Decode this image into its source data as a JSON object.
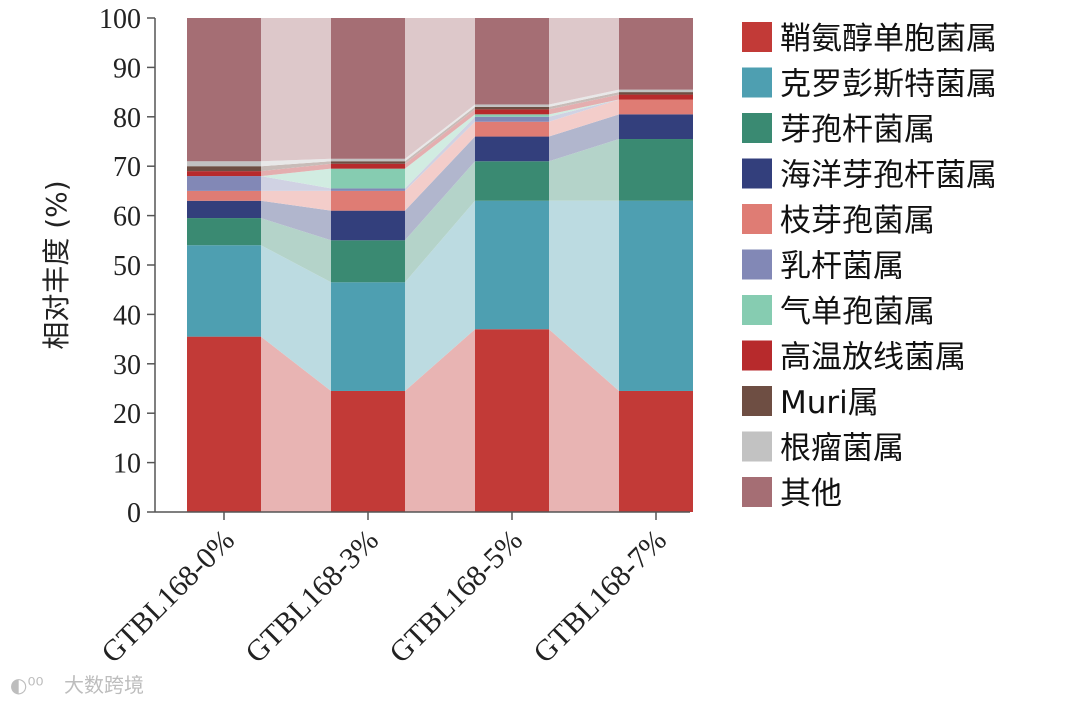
{
  "chart_data": {
    "type": "bar",
    "stacked": true,
    "title": "",
    "xlabel": "",
    "ylabel": "相对丰度 (%)",
    "ylim": [
      0,
      100
    ],
    "yticks": [
      0,
      10,
      20,
      30,
      40,
      50,
      60,
      70,
      80,
      90,
      100
    ],
    "grid": false,
    "legend_position": "right",
    "categories": [
      "GTBL168-0%",
      "GTBL168-3%",
      "GTBL168-5%",
      "GTBL168-7%"
    ],
    "series": [
      {
        "name": "鞘氨醇单胞菌属",
        "color": "#c23a37",
        "values": [
          35.5,
          24.5,
          37.0,
          24.5
        ]
      },
      {
        "name": "克罗彭斯特菌属",
        "color": "#4e9fb1",
        "values": [
          18.5,
          22.0,
          26.0,
          38.5
        ]
      },
      {
        "name": "芽孢杆菌属",
        "color": "#3a8a72",
        "values": [
          5.5,
          8.5,
          8.0,
          12.5
        ]
      },
      {
        "name": "海洋芽孢杆菌属",
        "color": "#333f7c",
        "values": [
          3.5,
          6.0,
          5.0,
          5.0
        ]
      },
      {
        "name": "枝芽孢菌属",
        "color": "#df7c74",
        "values": [
          2.0,
          4.0,
          3.0,
          3.0
        ]
      },
      {
        "name": "乳杆菌属",
        "color": "#8288b6",
        "values": [
          3.0,
          0.5,
          1.0,
          0.0
        ]
      },
      {
        "name": "气单孢菌属",
        "color": "#86ccb1",
        "values": [
          0.0,
          4.0,
          0.5,
          0.0
        ]
      },
      {
        "name": "高温放线菌属",
        "color": "#b72a2c",
        "values": [
          1.0,
          1.0,
          1.0,
          1.0
        ]
      },
      {
        "name": "Muri属",
        "color": "#6e4e43",
        "values": [
          1.0,
          0.5,
          0.5,
          0.5
        ]
      },
      {
        "name": "根瘤菌属",
        "color": "#c2c2c2",
        "values": [
          1.0,
          0.5,
          0.5,
          0.5
        ]
      },
      {
        "name": "其他",
        "color": "#a56e74",
        "values": [
          29.0,
          28.5,
          17.5,
          14.5
        ]
      }
    ]
  },
  "watermark": "大数跨境"
}
